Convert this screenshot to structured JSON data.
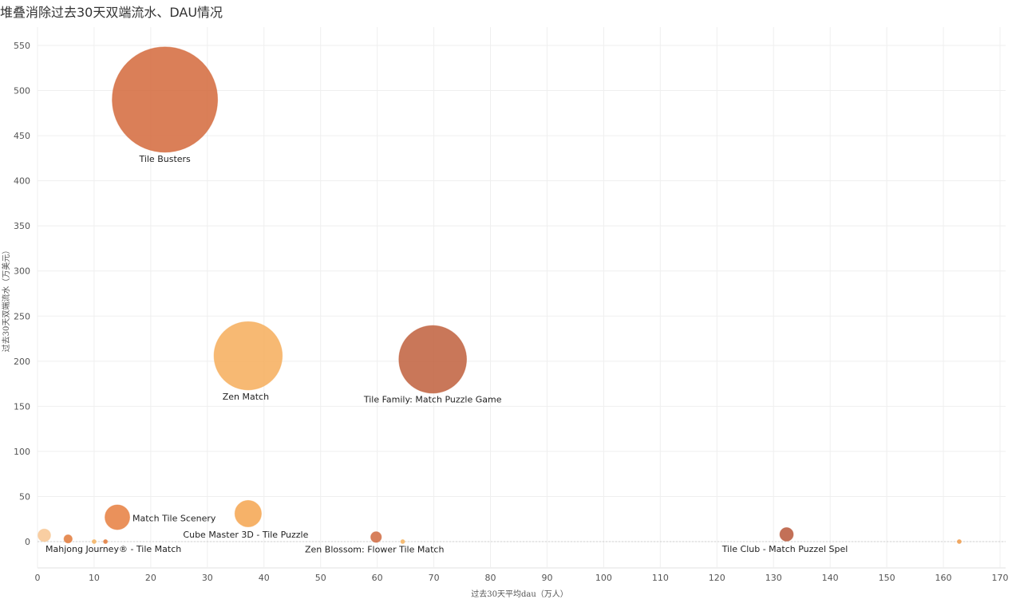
{
  "chart_data": {
    "type": "scatter",
    "title": "堆叠消除过去30天双端流水、DAU情况",
    "xlabel": "过去30天平均dau（万人）",
    "ylabel": "过去30天双端流水（万美元）",
    "xlim": [
      0,
      172
    ],
    "ylim": [
      -30,
      575
    ],
    "xticks": [
      0,
      10,
      20,
      30,
      40,
      50,
      60,
      70,
      80,
      90,
      100,
      110,
      120,
      130,
      140,
      150,
      160,
      170
    ],
    "yticks": [
      0,
      50,
      100,
      150,
      200,
      250,
      300,
      350,
      400,
      450,
      500,
      550
    ],
    "grid": true,
    "points": [
      {
        "name": "Tile Busters",
        "x": 22.5,
        "y": 490,
        "size": 490,
        "color": "#d4693b",
        "label": "Tile Busters"
      },
      {
        "name": "Zen Match",
        "x": 37.2,
        "y": 206,
        "size": 206,
        "color": "#f6ad5a",
        "label": "Zen Match"
      },
      {
        "name": "Tile Family: Match Puzzle Game",
        "x": 69.8,
        "y": 202,
        "size": 202,
        "color": "#c05f3c",
        "label": "Tile Family:  Match Puzzle Game"
      },
      {
        "name": "Match Tile Scenery",
        "x": 14.1,
        "y": 27,
        "size": 27,
        "color": "#e67e3e",
        "label": "Match Tile Scenery"
      },
      {
        "name": "Cube Master 3D - Tile Puzzle",
        "x": 37.2,
        "y": 31,
        "size": 31,
        "color": "#f5a54f",
        "label": "Cube Master 3D - Tile Puzzle"
      },
      {
        "name": "Mahjong Journey® - Tile Match",
        "x": 1.2,
        "y": 7,
        "size": 7,
        "color": "#f8c692",
        "label": "Mahjong Journey® - Tile Match"
      },
      {
        "name": "point-small-1",
        "x": 5.4,
        "y": 3,
        "size": 3,
        "color": "#e27a3a",
        "label": ""
      },
      {
        "name": "point-small-2",
        "x": 10.0,
        "y": 0,
        "size": 0.3,
        "color": "#f6b35f",
        "label": ""
      },
      {
        "name": "point-small-3",
        "x": 12.0,
        "y": 0,
        "size": 0.2,
        "color": "#e27a3a",
        "label": ""
      },
      {
        "name": "Zen Blossom: Flower Tile Match",
        "x": 59.8,
        "y": 5,
        "size": 5,
        "color": "#d06a40",
        "label": "Zen Blossom: Flower Tile Match"
      },
      {
        "name": "point-small-4",
        "x": 64.5,
        "y": 0,
        "size": 0.6,
        "color": "#f6b35f",
        "label": ""
      },
      {
        "name": "Tile Club - Match Puzzel Spel",
        "x": 132.3,
        "y": 8,
        "size": 8,
        "color": "#b8573a",
        "label": "Tile Club - Match Puzzel Spel"
      },
      {
        "name": "point-small-5",
        "x": 162.8,
        "y": 0,
        "size": 0.6,
        "color": "#f09a48",
        "label": ""
      }
    ]
  }
}
